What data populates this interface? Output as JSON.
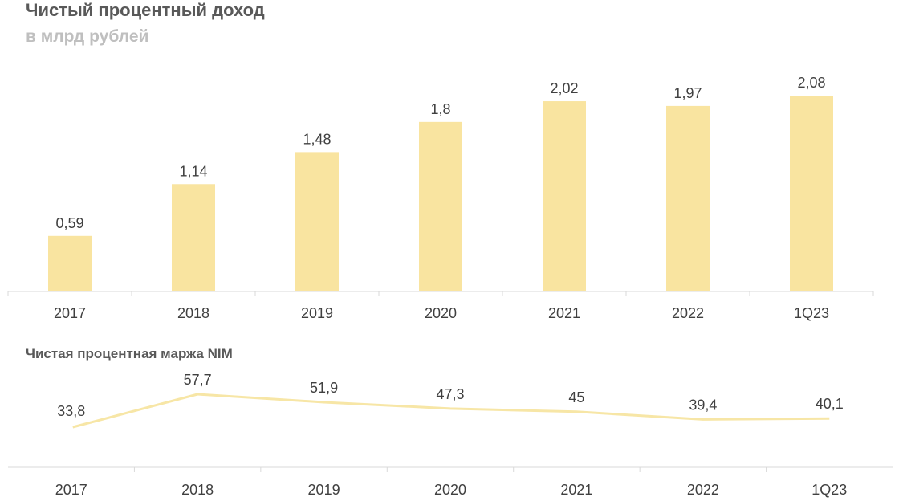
{
  "title": "Чистый процентный доход",
  "subtitle": "в млрд рублей",
  "bar_color": "#f9e4a0",
  "line_color": "#f7e6a6",
  "chart_data": [
    {
      "type": "bar",
      "title": "Чистый процентный доход",
      "subtitle": "в млрд рублей",
      "categories": [
        "2017",
        "2018",
        "2019",
        "2020",
        "2021",
        "2022",
        "1Q23"
      ],
      "values": [
        0.59,
        1.14,
        1.48,
        1.8,
        2.02,
        1.97,
        2.08
      ],
      "value_labels": [
        "0,59",
        "1,14",
        "1,48",
        "1,8",
        "2,02",
        "1,97",
        "2,08"
      ],
      "ylim": [
        0,
        2.08
      ],
      "grid": false,
      "legend": "none"
    },
    {
      "type": "line",
      "title": "Чистая процентная маржа NIM",
      "categories": [
        "2017",
        "2018",
        "2019",
        "2020",
        "2021",
        "2022",
        "1Q23"
      ],
      "values": [
        33.8,
        57.7,
        51.9,
        47.3,
        45,
        39.4,
        40.1
      ],
      "value_labels": [
        "33,8",
        "57,7",
        "51,9",
        "47,3",
        "45",
        "39,4",
        "40,1"
      ],
      "grid": false,
      "legend": "none"
    }
  ]
}
